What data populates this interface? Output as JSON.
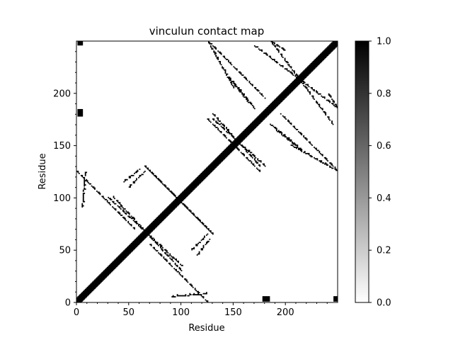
{
  "chart_data": {
    "type": "heatmap",
    "title": "vinculun contact map",
    "xlabel": "Residue",
    "ylabel": "Residue",
    "n_residues": 250,
    "xlim": [
      0,
      250
    ],
    "ylim": [
      0,
      250
    ],
    "x_ticks": [
      0,
      50,
      100,
      150,
      200
    ],
    "y_ticks": [
      0,
      50,
      100,
      150,
      200
    ],
    "value_range": [
      0,
      1
    ],
    "colormap": "Greys",
    "colorbar": {
      "ticks": [
        "0.0",
        "0.2",
        "0.4",
        "0.6",
        "0.8",
        "1.0"
      ],
      "values": [
        0,
        0.2,
        0.4,
        0.6,
        0.8,
        1.0
      ]
    },
    "diagonal_band_width": 4,
    "contact_segments": [
      {
        "name": "helix-pair-a",
        "x0": 0,
        "y0": 125,
        "x1": 55,
        "y1": 70
      },
      {
        "name": "helix-pair-b",
        "x0": 35,
        "y0": 100,
        "x1": 100,
        "y1": 30
      },
      {
        "name": "helix-pair-c",
        "x0": 65,
        "y0": 130,
        "x1": 130,
        "y1": 65
      },
      {
        "name": "helix-pair-d",
        "x0": 90,
        "y0": 5,
        "x1": 125,
        "y1": 8
      },
      {
        "name": "helix-pair-e",
        "x0": 45,
        "y0": 115,
        "x1": 60,
        "y1": 127
      },
      {
        "name": "helix-pair-f",
        "x0": 110,
        "y0": 50,
        "x1": 125,
        "y1": 65
      },
      {
        "name": "helix-pair-g",
        "x0": 130,
        "y0": 175,
        "x1": 180,
        "y1": 130
      },
      {
        "name": "helix-pair-h",
        "x0": 145,
        "y0": 155,
        "x1": 175,
        "y1": 125
      },
      {
        "name": "helix-pair-i",
        "x0": 145,
        "y0": 215,
        "x1": 165,
        "y1": 190
      },
      {
        "name": "helix-pair-j",
        "x0": 125,
        "y0": 250,
        "x1": 180,
        "y1": 195
      },
      {
        "name": "helix-pair-k",
        "x0": 170,
        "y0": 245,
        "x1": 250,
        "y1": 185
      },
      {
        "name": "helix-pair-l",
        "x0": 185,
        "y0": 170,
        "x1": 210,
        "y1": 150
      },
      {
        "name": "helix-pair-m",
        "x0": 205,
        "y0": 150,
        "x1": 250,
        "y1": 125
      },
      {
        "name": "helix-pair-n",
        "x0": 240,
        "y0": 200,
        "x1": 250,
        "y1": 185
      }
    ],
    "contact_blobs": [
      {
        "name": "blob-top-left",
        "x": 3,
        "y": 180,
        "r": 2
      },
      {
        "name": "blob-bottom-mid",
        "x": 182,
        "y": 3,
        "r": 2
      },
      {
        "name": "blob-bottom-right",
        "x": 248,
        "y": 3,
        "r": 2
      },
      {
        "name": "blob-top-corner",
        "x": 3,
        "y": 248,
        "r": 1
      }
    ]
  }
}
